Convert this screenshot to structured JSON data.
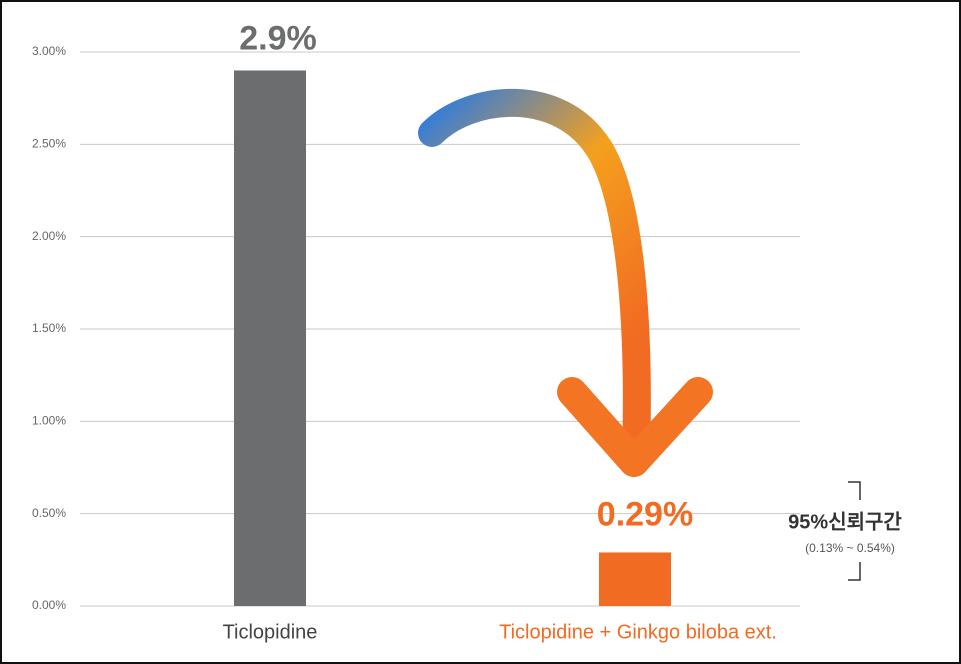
{
  "chart_data": {
    "type": "bar",
    "categories": [
      "Ticlopidine",
      "Ticlopidine + Ginkgo biloba ext."
    ],
    "values": [
      2.9,
      0.29
    ],
    "value_labels": [
      "2.9%",
      "0.29%"
    ],
    "colors": [
      "#6b6d6e",
      "#f26b22"
    ],
    "ylim": [
      0,
      3
    ],
    "yticks": [
      {
        "value": 0,
        "label": "0.00%"
      },
      {
        "value": 0.5,
        "label": "0.50%"
      },
      {
        "value": 1,
        "label": "1.00%"
      },
      {
        "value": 1.5,
        "label": "1.50%"
      },
      {
        "value": 2,
        "label": "2.00%"
      },
      {
        "value": 2.5,
        "label": "2.50%"
      },
      {
        "value": 3,
        "label": "3.00%"
      }
    ],
    "grid": true,
    "annotation": {
      "title": "95%신뢰구간",
      "text": "(0.13% ~ 0.54%)"
    }
  }
}
